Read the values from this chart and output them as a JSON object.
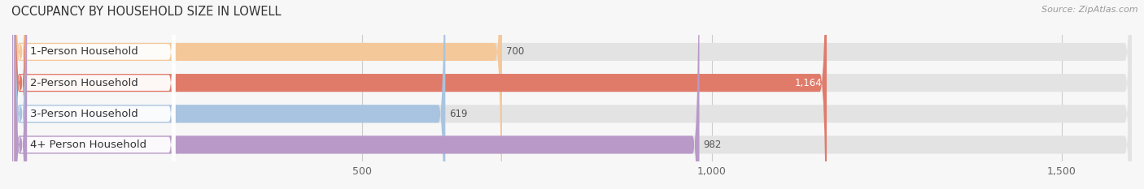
{
  "title": "OCCUPANCY BY HOUSEHOLD SIZE IN LOWELL",
  "source": "Source: ZipAtlas.com",
  "categories": [
    "1-Person Household",
    "2-Person Household",
    "3-Person Household",
    "4+ Person Household"
  ],
  "values": [
    700,
    1164,
    619,
    982
  ],
  "bar_colors": [
    "#f5c89a",
    "#e07b6a",
    "#a8c4e0",
    "#b899c8"
  ],
  "xlim": [
    0,
    1600
  ],
  "xticks": [
    500,
    1000,
    1500
  ],
  "xtick_labels": [
    "500",
    "1,000",
    "1,500"
  ],
  "background_color": "#f7f7f7",
  "bar_background_color": "#e3e3e3",
  "title_fontsize": 10.5,
  "label_fontsize": 9.5,
  "value_fontsize": 8.5,
  "bar_height": 0.58,
  "value_labels": [
    "700",
    "1,164",
    "619",
    "982"
  ],
  "value_label_colors": [
    "#555555",
    "#ffffff",
    "#555555",
    "#555555"
  ]
}
